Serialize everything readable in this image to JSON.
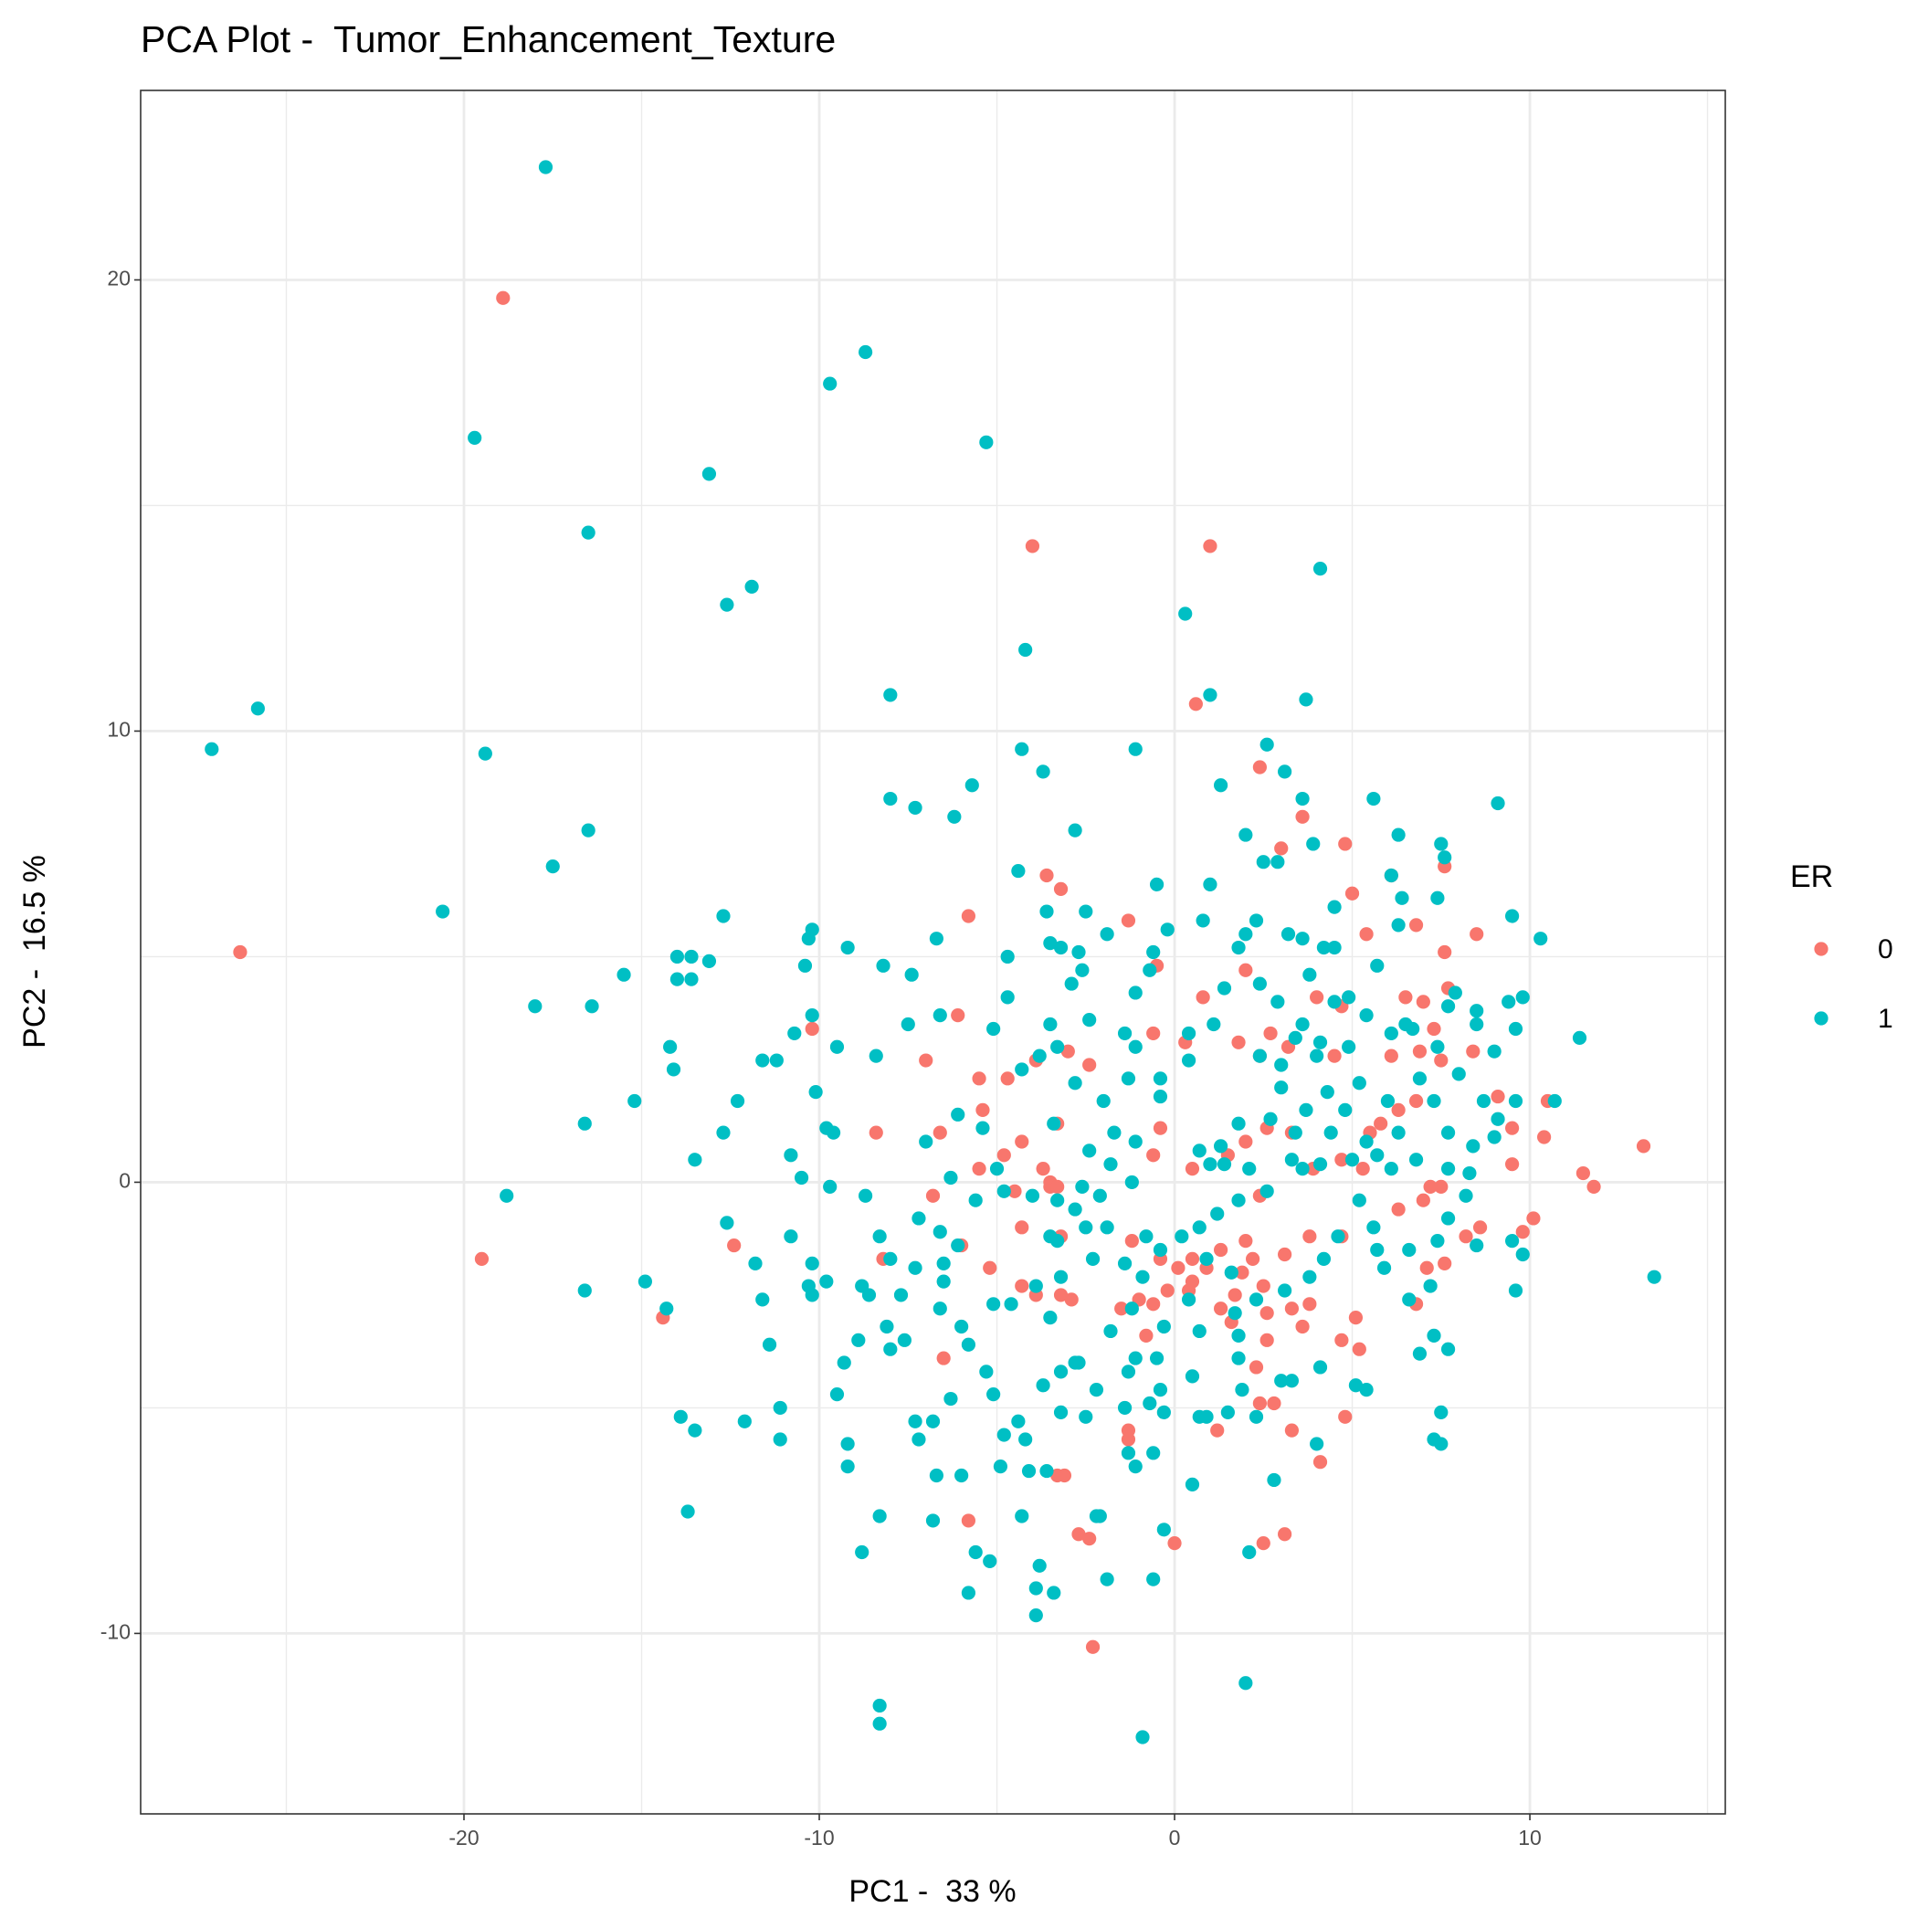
{
  "chart_data": {
    "type": "scatter",
    "title": "PCA Plot -  Tumor_Enhancement_Texture",
    "x_label": "PC1 -  33 %",
    "y_label": "PC2 -  16.5 %",
    "legend_title": "ER",
    "legend_position": "right",
    "grid": true,
    "xlim": [
      -29.1,
      15.5
    ],
    "ylim": [
      -14.0,
      24.2
    ],
    "xticks": [
      -20,
      -10,
      0,
      10
    ],
    "yticks": [
      -10,
      0,
      10,
      20
    ],
    "series": [
      {
        "name": "0",
        "color": "#F8766D",
        "x": [
          -18.9,
          -26.3,
          -19.5,
          -14.4,
          -12.4,
          -10.2,
          -8.4,
          -8.2,
          -4.0,
          1.0,
          0.6,
          2.4,
          3.6,
          3.0,
          4.8,
          5.0,
          5.4,
          7.6,
          6.8,
          8.5,
          7.6,
          6.1,
          -3.6,
          -3.2,
          -1.3,
          -5.8,
          -0.5,
          2.0,
          0.8,
          4.0,
          4.7,
          6.5,
          7.0,
          7.7,
          7.3,
          6.9,
          8.4,
          7.5,
          6.1,
          4.5,
          3.2,
          2.7,
          2.4,
          1.8,
          0.3,
          -0.6,
          -3.0,
          -2.4,
          -3.9,
          -6.1,
          -7.0,
          -5.5,
          -4.7,
          -5.4,
          -3.3,
          -4.3,
          -6.6,
          -5.5,
          -4.8,
          -3.5,
          -4.5,
          -3.5,
          -3.7,
          -3.3,
          -6.8,
          -4.3,
          -5.2,
          -4.3,
          -3.2,
          -2.9,
          -3.9,
          -6.0,
          -3.2,
          -1.2,
          -0.6,
          -0.4,
          0.5,
          -0.4,
          -0.6,
          0.4,
          0.5,
          -0.2,
          0.9,
          1.3,
          1.9,
          2.5,
          3.1,
          3.8,
          4.7,
          5.1,
          5.2,
          3.6,
          2.6,
          2.3,
          2.4,
          2.8,
          1.6,
          -0.8,
          -1.3,
          -1.3,
          -3.3,
          -3.1,
          -2.7,
          -2.4,
          -2.3,
          0.0,
          2.5,
          3.1,
          3.3,
          4.1,
          4.7,
          4.8,
          -5.8,
          -6.5,
          7.1,
          6.8,
          7.6,
          8.2,
          8.6,
          9.8,
          10.1,
          10.4,
          10.5,
          9.5,
          9.1,
          11.5,
          11.8,
          13.2,
          9.5,
          7.2,
          7.5,
          7.0,
          6.3,
          5.5,
          5.8,
          6.3,
          6.8,
          5.3,
          4.7,
          3.9,
          3.3,
          2.6,
          2.0,
          1.5,
          2.4,
          2.0,
          1.3,
          0.5,
          0.1,
          -1.0,
          -1.5,
          1.2,
          3.3,
          2.6,
          3.8,
          1.7,
          2.2
        ],
        "values": [
          19.6,
          5.1,
          -1.7,
          -3.0,
          -1.4,
          3.4,
          1.1,
          -1.7,
          14.1,
          14.1,
          10.6,
          9.2,
          8.1,
          7.4,
          7.5,
          6.4,
          5.5,
          7.0,
          5.7,
          5.5,
          5.1,
          6.8,
          6.8,
          6.5,
          5.8,
          5.9,
          4.8,
          4.7,
          4.1,
          4.1,
          3.9,
          4.1,
          4.0,
          4.3,
          3.4,
          2.9,
          2.9,
          2.7,
          2.8,
          2.8,
          3.0,
          3.3,
          2.8,
          3.1,
          3.1,
          3.3,
          2.9,
          2.6,
          2.7,
          3.7,
          2.7,
          2.3,
          2.3,
          1.6,
          1.3,
          0.9,
          1.1,
          0.3,
          0.6,
          -0.1,
          -0.2,
          0.0,
          0.3,
          -0.1,
          -0.3,
          -1.0,
          -1.9,
          -2.3,
          -2.5,
          -2.6,
          -2.5,
          -1.4,
          -1.2,
          -1.3,
          0.6,
          1.2,
          0.3,
          -1.7,
          -2.7,
          -2.4,
          -2.2,
          -2.4,
          -1.9,
          -2.8,
          -2.0,
          -2.3,
          -1.6,
          -1.2,
          -1.2,
          -3.0,
          -3.7,
          -3.2,
          -3.5,
          -4.1,
          -4.9,
          -4.9,
          -3.1,
          -3.4,
          -5.5,
          -5.7,
          -6.5,
          -6.5,
          -7.8,
          -7.9,
          -10.3,
          -8.0,
          -8.0,
          -7.8,
          -5.5,
          -6.2,
          -3.5,
          -5.2,
          -7.5,
          -3.9,
          -1.9,
          -2.7,
          -1.8,
          -1.2,
          -1.0,
          -1.1,
          -0.8,
          1.0,
          1.8,
          1.2,
          1.9,
          0.2,
          -0.1,
          0.8,
          0.4,
          -0.1,
          -0.1,
          -0.4,
          -0.6,
          1.1,
          1.3,
          1.6,
          1.8,
          0.3,
          0.5,
          0.3,
          1.1,
          1.2,
          0.9,
          0.6,
          -0.3,
          -1.3,
          -1.5,
          -1.7,
          -1.9,
          -2.6,
          -2.8,
          -5.5,
          -2.8,
          -2.9,
          -2.7,
          -2.5,
          -1.7
        ]
      },
      {
        "name": "1",
        "color": "#00BFC4",
        "x": [
          -17.7,
          -27.1,
          -25.8,
          -19.7,
          -19.4,
          -8.7,
          -9.7,
          -5.3,
          -13.1,
          -16.5,
          -11.9,
          -12.6,
          -4.2,
          0.3,
          4.1,
          -8.0,
          1.0,
          3.7,
          -1.1,
          -4.3,
          -3.7,
          -5.7,
          -8.0,
          -7.3,
          -6.2,
          -2.8,
          -16.5,
          -17.5,
          -20.6,
          -12.7,
          -18.0,
          -16.4,
          -15.5,
          -14.0,
          -13.6,
          -13.1,
          -14.0,
          -13.6,
          -14.2,
          -14.1,
          -16.6,
          -15.2,
          -13.5,
          -18.8,
          -16.6,
          -14.9,
          -14.3,
          -13.9,
          -13.5,
          -13.7,
          -12.1,
          -11.1,
          -11.1,
          -11.4,
          -11.6,
          -12.6,
          -11.8,
          -12.7,
          -12.3,
          -11.6,
          -11.2,
          -10.7,
          -10.2,
          -10.4,
          -10.3,
          -10.2,
          -9.2,
          -10.1,
          -9.5,
          -8.4,
          -8.2,
          -7.5,
          -7.4,
          -6.7,
          -6.6,
          -7.7,
          -8.9,
          -9.3,
          -9.2,
          -9.2,
          -8.8,
          -8.3,
          -8.3,
          -8.3,
          -0.9,
          2.0,
          -3.9,
          -3.9,
          -3.4,
          -5.8,
          -5.2,
          -5.6,
          -4.3,
          -3.8,
          -1.9,
          -0.6,
          2.1,
          -2.2,
          -2.1,
          -0.3,
          0.5,
          2.8,
          -6.8,
          -6.0,
          -6.7,
          -6.8,
          -7.3,
          -7.2,
          7.5,
          7.3,
          7.5,
          13.5,
          11.4,
          10.7,
          10.3,
          9.1,
          9.5,
          9.8,
          9.4,
          5.6,
          3.1,
          2.6,
          3.6,
          1.3,
          2.0,
          3.9,
          2.5,
          2.9,
          1.0,
          -0.5,
          -0.2,
          0.8,
          6.3,
          7.5,
          7.6,
          6.1,
          6.4,
          7.4,
          6.3,
          4.5,
          3.2,
          9.0,
          9.6,
          9.6,
          9.8,
          9.5,
          8.5,
          8.2,
          9.0,
          7.7,
          6.9,
          7.3,
          5.4,
          5.1,
          4.0,
          4.1,
          3.3,
          1.8,
          0.7,
          0.5,
          -0.6,
          -1.1,
          -1.3,
          -2.8,
          -3.2,
          -4.4,
          -4.1,
          -4.9,
          -5.1,
          -5.3,
          -5.8,
          -6.3,
          -6.6,
          -6.5,
          -6.1,
          -7.2,
          -6.6,
          -6.3,
          -7.0,
          -5.4,
          -6.1,
          -5.1,
          -4.7,
          -4.7,
          -4.4,
          -3.6,
          -3.5,
          -3.2,
          -2.7,
          -2.5,
          -2.6,
          -2.9,
          -3.5,
          -2.4,
          -3.3,
          -3.8,
          -4.3,
          -2.8,
          -3.4,
          -1.9,
          -0.6,
          -0.7,
          -1.1,
          -1.4,
          -1.1,
          -1.3,
          -2.0,
          -0.4,
          -0.4,
          0.4,
          1.1,
          0.4,
          1.4,
          1.8,
          2.0,
          2.3,
          3.6,
          4.2,
          4.5,
          4.5,
          3.8,
          4.9,
          5.4,
          5.7,
          2.9,
          2.4,
          2.4,
          3.4,
          3.6,
          3.0,
          4.0,
          4.1,
          4.9,
          6.1,
          6.5,
          6.7,
          7.7,
          7.9,
          8.5,
          8.5,
          7.4,
          8.0,
          8.7,
          9.1,
          9.6,
          6.9,
          7.3,
          6.0,
          5.2,
          4.8,
          4.3,
          3.7,
          3.0,
          2.7,
          1.8,
          1.3,
          0.7,
          1.0,
          1.4,
          2.1,
          3.3,
          3.6,
          4.1,
          5.0,
          5.7,
          6.1,
          6.8,
          7.7,
          8.4,
          7.7,
          6.3,
          5.4,
          4.4,
          3.4,
          2.6,
          1.8,
          1.2,
          0.7,
          0.9,
          0.4,
          0.7,
          1.7,
          2.3,
          3.1,
          3.8,
          4.2,
          4.6,
          5.2,
          5.6,
          5.9,
          5.7,
          6.6,
          6.6,
          7.2,
          7.4,
          7.7,
          8.3,
          -1.1,
          -1.8,
          -1.2,
          -0.9,
          -0.4,
          -0.8,
          -1.4,
          -2.3,
          -2.5,
          -1.9,
          -2.1,
          -1.8,
          -1.2,
          -1.1,
          -1.7,
          -2.4,
          -2.6,
          -2.8,
          -3.3,
          -3.2,
          -3.9,
          -3.5,
          -4.6,
          -5.1,
          -6.0,
          -6.5,
          -7.3,
          -8.0,
          -8.0,
          -7.6,
          -8.1,
          -8.6,
          -8.8,
          -9.8,
          -10.2,
          -10.8,
          -10.2,
          -10.3,
          -9.5,
          -8.7,
          -9.7,
          -9.8,
          -9.6,
          -10.8,
          -10.5,
          -8.3,
          -5.6,
          -5.0,
          -4.8,
          -4.0,
          -3.3,
          -3.5,
          -3.2,
          -3.7,
          -2.7,
          -2.2,
          -1.4,
          -0.7,
          -0.3,
          0.9,
          1.5,
          2.3,
          1.9,
          3.0,
          1.8,
          1.6,
          0.2,
          -0.3,
          -0.5,
          -0.4,
          -1.3,
          -4.2,
          -4.8,
          -3.6,
          -2.5
        ],
        "values": [
          22.5,
          9.6,
          10.5,
          16.5,
          9.5,
          18.4,
          17.7,
          16.4,
          15.7,
          14.4,
          13.2,
          12.8,
          11.8,
          12.6,
          13.6,
          10.8,
          10.8,
          10.7,
          9.6,
          9.6,
          9.1,
          8.8,
          8.5,
          8.3,
          8.1,
          7.8,
          7.8,
          7.0,
          6.0,
          5.9,
          3.9,
          3.9,
          4.6,
          5.0,
          5.0,
          4.9,
          4.5,
          4.5,
          3.0,
          2.5,
          1.3,
          1.8,
          0.5,
          -0.3,
          -2.4,
          -2.2,
          -2.8,
          -5.2,
          -5.5,
          -7.3,
          -5.3,
          -5.7,
          -5.0,
          -3.6,
          -2.6,
          -0.9,
          -1.8,
          1.1,
          1.8,
          2.7,
          2.7,
          3.3,
          3.7,
          4.8,
          5.4,
          5.6,
          5.2,
          2.0,
          3.0,
          2.8,
          4.8,
          3.5,
          4.6,
          5.4,
          3.7,
          -2.5,
          -3.5,
          -4.0,
          -5.8,
          -6.3,
          -8.2,
          -7.4,
          -11.6,
          -12.0,
          -12.3,
          -11.1,
          -9.6,
          -9.0,
          -9.1,
          -9.1,
          -8.4,
          -8.2,
          -7.4,
          -8.5,
          -8.8,
          -8.8,
          -8.2,
          -7.4,
          -7.4,
          -7.7,
          -6.7,
          -6.6,
          -7.5,
          -6.5,
          -6.5,
          -5.3,
          -5.3,
          -5.7,
          -5.1,
          -5.7,
          -5.8,
          -2.1,
          3.2,
          1.8,
          5.4,
          8.4,
          5.9,
          4.1,
          4.0,
          8.5,
          9.1,
          9.7,
          8.5,
          8.8,
          7.7,
          7.5,
          7.1,
          7.1,
          6.6,
          6.6,
          5.6,
          5.8,
          7.7,
          7.5,
          7.2,
          6.8,
          6.3,
          6.3,
          5.7,
          6.1,
          5.5,
          2.9,
          3.4,
          -2.4,
          -1.6,
          -1.3,
          -1.4,
          -0.3,
          1.0,
          -3.7,
          -3.8,
          -3.4,
          -4.6,
          -4.5,
          -5.8,
          -4.1,
          -4.4,
          -3.9,
          -5.2,
          -4.3,
          -6.0,
          -6.3,
          -6.0,
          -4.0,
          -5.1,
          -5.3,
          -6.4,
          -6.3,
          -4.7,
          -4.2,
          -3.6,
          -4.8,
          -2.8,
          -1.8,
          -1.4,
          -0.8,
          -1.1,
          0.1,
          0.9,
          1.2,
          1.5,
          3.4,
          4.1,
          5.0,
          6.9,
          6.0,
          5.3,
          5.2,
          5.1,
          6.0,
          4.7,
          4.4,
          3.5,
          3.6,
          3.0,
          2.8,
          2.5,
          2.2,
          1.3,
          5.5,
          5.1,
          4.7,
          4.2,
          3.3,
          3.0,
          2.3,
          1.8,
          1.9,
          2.3,
          2.7,
          3.5,
          3.3,
          4.3,
          5.2,
          5.5,
          5.8,
          5.4,
          5.2,
          5.2,
          4.0,
          4.6,
          4.1,
          3.7,
          4.8,
          4.0,
          4.4,
          2.8,
          3.2,
          3.5,
          2.6,
          2.8,
          3.1,
          3.0,
          3.3,
          3.5,
          3.4,
          3.9,
          4.2,
          3.8,
          3.5,
          3.0,
          2.4,
          1.8,
          1.4,
          1.8,
          2.3,
          1.8,
          1.8,
          2.2,
          1.6,
          2.0,
          1.6,
          2.1,
          1.4,
          1.3,
          0.8,
          0.7,
          0.4,
          0.4,
          0.3,
          0.5,
          0.3,
          0.4,
          0.5,
          0.6,
          0.3,
          0.5,
          0.3,
          0.8,
          1.1,
          1.1,
          0.9,
          1.1,
          1.1,
          -0.2,
          -0.4,
          -0.7,
          -1.0,
          -1.7,
          -2.6,
          -3.3,
          -2.9,
          -2.6,
          -2.4,
          -2.1,
          -1.7,
          -1.2,
          -0.4,
          -1.0,
          -1.9,
          -1.5,
          -1.5,
          -2.6,
          -2.3,
          -1.3,
          -0.8,
          0.2,
          -3.9,
          -3.3,
          -2.8,
          -2.1,
          -1.5,
          -1.2,
          -1.8,
          -1.7,
          -1.0,
          -1.0,
          -0.3,
          0.4,
          0.0,
          0.9,
          1.1,
          0.7,
          -0.1,
          -0.6,
          -1.3,
          -2.1,
          -2.3,
          -3.0,
          -2.7,
          -2.7,
          -3.2,
          -2.2,
          -1.9,
          -1.7,
          -3.7,
          -3.5,
          -3.2,
          -2.5,
          -2.3,
          -2.2,
          -1.8,
          -1.2,
          -2.5,
          -2.3,
          -4.7,
          -0.3,
          -0.1,
          1.2,
          1.1,
          0.6,
          0.1,
          -1.2,
          -0.4,
          0.3,
          -0.2,
          -0.3,
          -0.4,
          -1.2,
          -4.2,
          -4.5,
          -4.0,
          -4.6,
          -5.0,
          -4.9,
          -5.1,
          -5.2,
          -5.1,
          -5.2,
          -4.6,
          -4.4,
          -3.4,
          -2.0,
          -1.2,
          -3.2,
          -3.9,
          -4.6,
          -4.2,
          -5.7,
          -5.6,
          -6.4,
          -5.2
        ]
      }
    ]
  }
}
